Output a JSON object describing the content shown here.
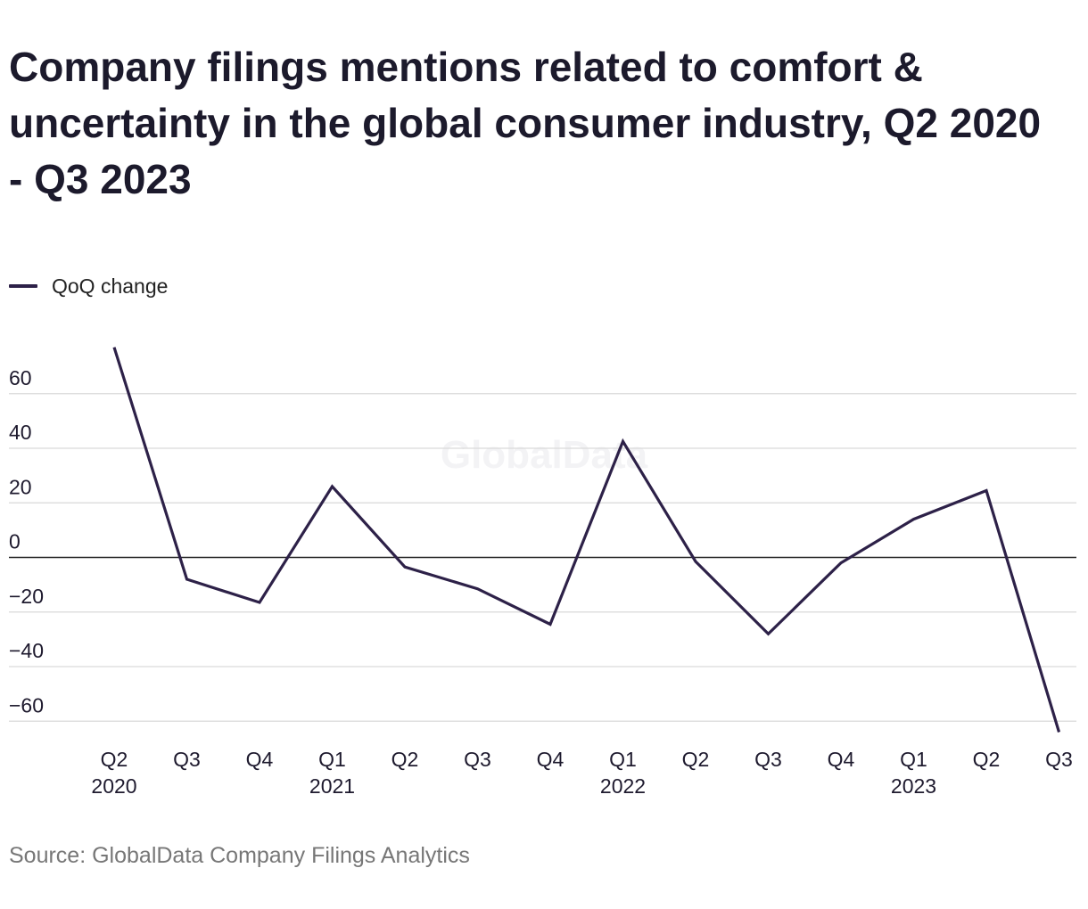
{
  "title": "Company filings mentions related to comfort & uncertainty in the global consumer industry, Q2 2020 - Q3 2023",
  "source": "Source: GlobalData Company Filings Analytics",
  "watermark": "GlobalData",
  "colors": {
    "line": "#2d2148",
    "grid": "#d9d9d9",
    "zero": "#222222",
    "text": "#1e1a2e"
  },
  "chart_data": {
    "type": "line",
    "x": [
      "Q2 2020",
      "Q3 2020",
      "Q4 2020",
      "Q1 2021",
      "Q2 2021",
      "Q3 2021",
      "Q4 2021",
      "Q1 2022",
      "Q2 2022",
      "Q3 2022",
      "Q4 2022",
      "Q1 2023",
      "Q2 2023",
      "Q3 2023"
    ],
    "tick_labels": [
      [
        "Q2",
        "2020"
      ],
      [
        "Q3",
        ""
      ],
      [
        "Q4",
        ""
      ],
      [
        "Q1",
        "2021"
      ],
      [
        "Q2",
        ""
      ],
      [
        "Q3",
        ""
      ],
      [
        "Q4",
        ""
      ],
      [
        "Q1",
        "2022"
      ],
      [
        "Q2",
        ""
      ],
      [
        "Q3",
        ""
      ],
      [
        "Q4",
        ""
      ],
      [
        "Q1",
        "2023"
      ],
      [
        "Q2",
        ""
      ],
      [
        "Q3",
        ""
      ]
    ],
    "series": [
      {
        "name": "QoQ change",
        "values": [
          77,
          -8,
          -16.5,
          26,
          -3.5,
          -11.5,
          -24.5,
          42.5,
          -1.5,
          -28,
          -2,
          14,
          24.5,
          -64
        ]
      }
    ],
    "y_ticks": [
      60,
      40,
      20,
      0,
      -20,
      -40,
      -60
    ],
    "y_tick_labels": [
      "60",
      "40",
      "20",
      "0",
      "−20",
      "−40",
      "−60"
    ],
    "ylim": [
      -62,
      77
    ],
    "grid": true,
    "legend_position": "top-left"
  }
}
